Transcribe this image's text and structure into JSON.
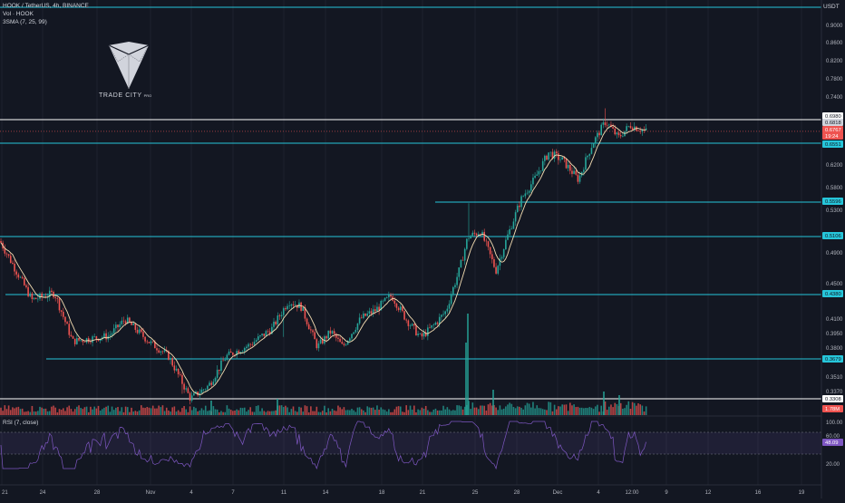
{
  "legend": {
    "symbol": "HOOK / TetherUS, 4h, BINANCE",
    "volume": "Vol · HOOK",
    "sma": "3SMA (7, 25, 99)"
  },
  "rsi_label": "RSI (7, close)",
  "logo": {
    "name": "TRADE CITY",
    "suffix": "PRO"
  },
  "currency": "USDT",
  "colors": {
    "background": "#131722",
    "grid": "#1e222d",
    "level_line": "#26c6da",
    "up": "#26a69a",
    "down": "#ef5350",
    "ma": "#f5deb3",
    "rsi": "#7e57c2"
  },
  "price_axis": {
    "ticks": [
      "0.9000",
      "0.8600",
      "0.8200",
      "0.7800",
      "0.7400",
      "0.6200",
      "0.5800",
      "0.5300",
      "0.4900",
      "0.4500",
      "0.4100",
      "0.3950",
      "0.3800",
      "0.3510",
      "0.3370"
    ]
  },
  "price_badges": [
    {
      "text": "0.6980",
      "bg": "#ffffff",
      "fg": "#131722"
    },
    {
      "text": "0.6818",
      "bg": "#d1d4dc",
      "fg": "#131722"
    },
    {
      "text": "0.6767",
      "bg": "#ef5350",
      "fg": "#ffffff"
    },
    {
      "text": "19:24",
      "bg": "#ef5350",
      "fg": "#ffffff"
    },
    {
      "text": "0.6551",
      "bg": "#26c6da",
      "fg": "#131722"
    },
    {
      "text": "0.5596",
      "bg": "#26c6da",
      "fg": "#131722"
    },
    {
      "text": "0.5106",
      "bg": "#26c6da",
      "fg": "#131722"
    },
    {
      "text": "0.4380",
      "bg": "#26c6da",
      "fg": "#131722"
    },
    {
      "text": "0.3679",
      "bg": "#26c6da",
      "fg": "#131722"
    },
    {
      "text": "0.3308",
      "bg": "#ffffff",
      "fg": "#131722"
    },
    {
      "text": "1.78M",
      "bg": "#ef5350",
      "fg": "#ffffff"
    }
  ],
  "rsi_axis": {
    "ticks": [
      "100.00",
      "60.00",
      "20.00"
    ],
    "badge": {
      "text": "48.09",
      "bg": "#7e57c2",
      "fg": "#ffffff"
    }
  },
  "time_axis": {
    "ticks": [
      "21",
      "24",
      "28",
      "Nov",
      "4",
      "7",
      "11",
      "14",
      "18",
      "21",
      "25",
      "28",
      "Dec",
      "4",
      "12:00",
      "9",
      "12",
      "16",
      "19"
    ]
  },
  "chart_data": {
    "type": "line",
    "title": "HOOK / TetherUS, 4h, BINANCE",
    "horizontal_levels": [
      0.944,
      0.698,
      0.6551,
      0.5596,
      0.5106,
      0.438,
      0.3679,
      0.3308
    ],
    "last_price": 0.6767,
    "volume_last": "1.78M",
    "rsi_last": 48.09,
    "price_path": [
      {
        "x": "21",
        "y": 0.505
      },
      {
        "x": "24",
        "y": 0.432
      },
      {
        "x": "24",
        "y": 0.44
      },
      {
        "x": "28",
        "y": 0.387
      },
      {
        "x": "28",
        "y": 0.411
      },
      {
        "x": "Nov",
        "y": 0.386
      },
      {
        "x": "4",
        "y": 0.331
      },
      {
        "x": "7",
        "y": 0.383
      },
      {
        "x": "11",
        "y": 0.431
      },
      {
        "x": "14",
        "y": 0.381
      },
      {
        "x": "18",
        "y": 0.437
      },
      {
        "x": "21",
        "y": 0.391
      },
      {
        "x": "25",
        "y": 0.51
      },
      {
        "x": "25",
        "y": 0.495
      },
      {
        "x": "28",
        "y": 0.565
      },
      {
        "x": "Dec",
        "y": 0.64
      },
      {
        "x": "4",
        "y": 0.61
      },
      {
        "x": "4",
        "y": 0.695
      },
      {
        "x": "12:00",
        "y": 0.677
      }
    ]
  }
}
